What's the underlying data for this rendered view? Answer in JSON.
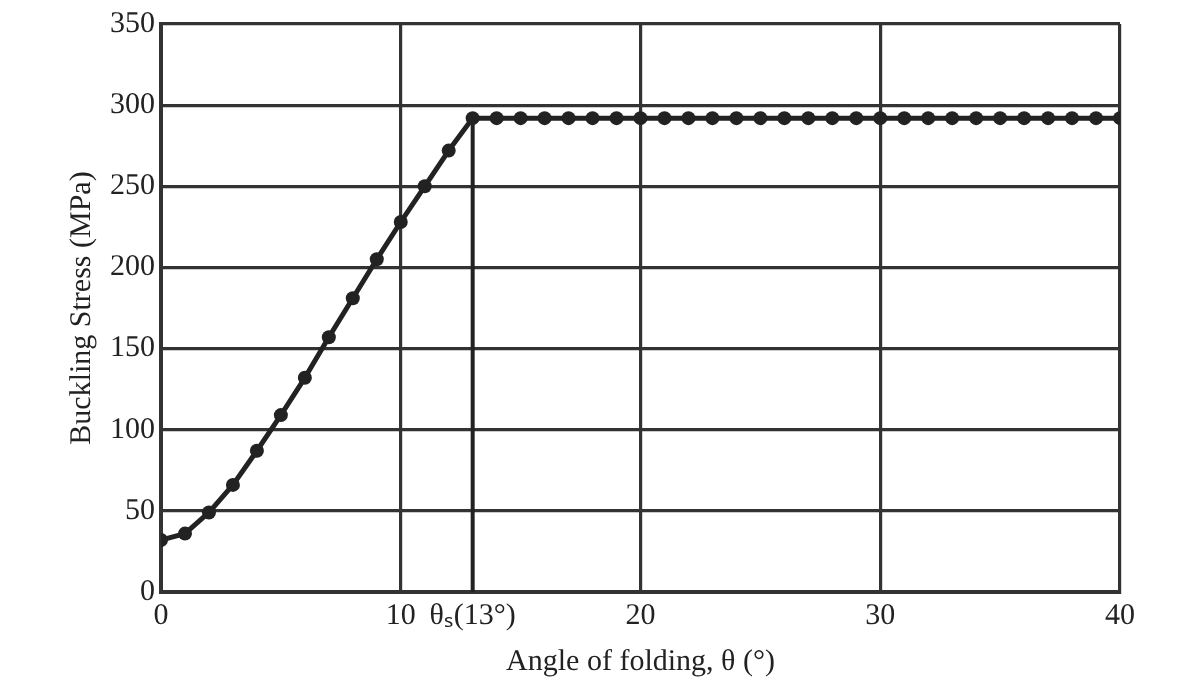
{
  "chart_data": {
    "type": "line",
    "xlabel": "Angle of folding, θ (°)",
    "ylabel": "Buckling Stress (MPa)",
    "x": [
      0,
      1,
      2,
      3,
      4,
      5,
      6,
      7,
      8,
      9,
      10,
      11,
      12,
      13,
      14,
      15,
      16,
      17,
      18,
      19,
      20,
      21,
      22,
      23,
      24,
      25,
      26,
      27,
      28,
      29,
      30,
      31,
      32,
      33,
      34,
      35,
      36,
      37,
      38,
      39,
      40
    ],
    "series": [
      {
        "color": "#222222",
        "values": [
          32,
          36,
          49,
          66,
          87,
          109,
          132,
          157,
          181,
          205,
          228,
          250,
          272,
          292,
          292,
          292,
          292,
          292,
          292,
          292,
          292,
          292,
          292,
          292,
          292,
          292,
          292,
          292,
          292,
          292,
          292,
          292,
          292,
          292,
          292,
          292,
          292,
          292,
          292,
          292,
          292
        ]
      }
    ],
    "xlim": [
      0,
      40
    ],
    "xticks": [
      0,
      10,
      {
        "value": 13,
        "label": "θₛ(13°)"
      },
      20,
      30,
      40
    ],
    "ylim": [
      0,
      350
    ],
    "yticks": [
      0,
      50,
      100,
      150,
      200,
      250,
      300,
      350
    ],
    "ref_lines": [
      {
        "axis": "x",
        "value": 13,
        "color": "#222222"
      }
    ],
    "grid": true,
    "legend": false,
    "marker": "circle",
    "line_style": "solid"
  }
}
